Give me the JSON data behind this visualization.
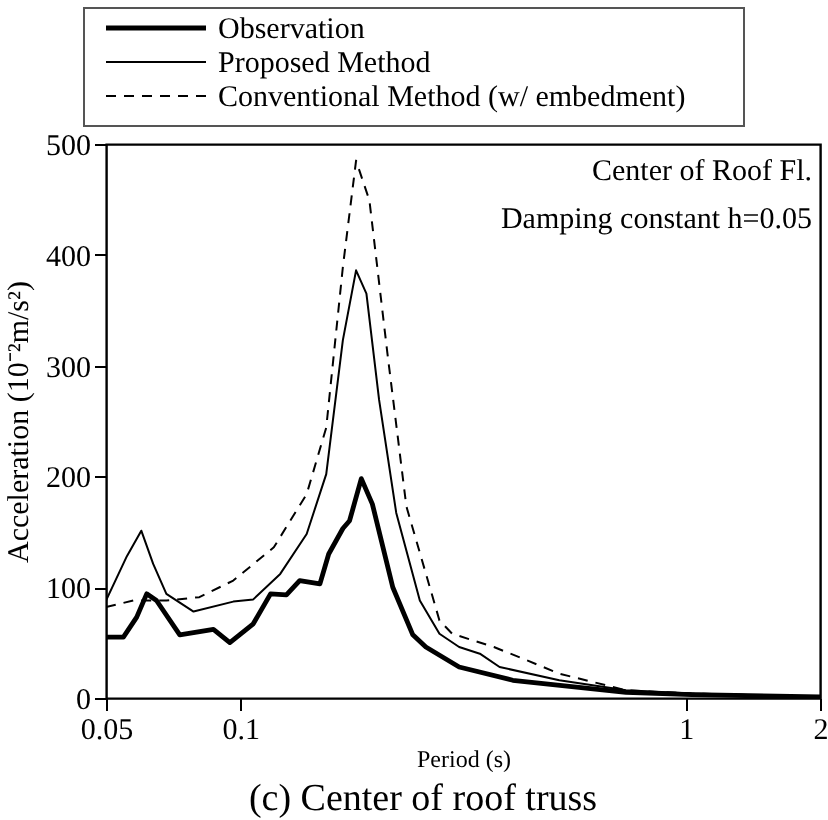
{
  "chart_data": {
    "type": "line",
    "xlabel": "Period (s)",
    "ylabel": "Acceleration (10⁻²m/s²)",
    "annotations": [
      "Center of Roof Fl.",
      "Damping constant h=0.05",
      "(c) Center of roof truss"
    ],
    "log": "x",
    "xlim": [
      0.05,
      2
    ],
    "xticks": [
      0.05,
      0.1,
      1,
      2
    ],
    "ylim": [
      0,
      500
    ],
    "yticks": [
      0,
      100,
      200,
      300,
      400,
      500
    ],
    "grid": false,
    "legend": "top",
    "marker": "none",
    "series": [
      {
        "name": "Observation",
        "color": "#000000",
        "line_style": "solid",
        "x": [
          0.05,
          0.0547,
          0.0586,
          0.0617,
          0.0649,
          0.0732,
          0.0871,
          0.0948,
          0.107,
          0.117,
          0.127,
          0.136,
          0.151,
          0.158,
          0.17,
          0.176,
          0.187,
          0.198,
          0.22,
          0.244,
          0.261,
          0.31,
          0.409,
          0.734,
          1.03,
          2
        ],
        "values": [
          55,
          55,
          73,
          94,
          88,
          57,
          62,
          50,
          67,
          94,
          93,
          106,
          103,
          130,
          153,
          160,
          198,
          175,
          100,
          57,
          46,
          28,
          16,
          5,
          3,
          1
        ]
      },
      {
        "name": "Proposed Method",
        "color": "#000000",
        "line_style": "solid",
        "x": [
          0.05,
          0.0557,
          0.06,
          0.0638,
          0.0683,
          0.0786,
          0.0965,
          0.107,
          0.123,
          0.141,
          0.156,
          0.17,
          0.182,
          0.192,
          0.205,
          0.224,
          0.253,
          0.28,
          0.31,
          0.345,
          0.382,
          0.52,
          0.734,
          1.03,
          2
        ],
        "values": [
          88,
          128,
          151,
          121,
          94,
          78,
          87,
          89,
          112,
          148,
          202,
          323,
          386,
          365,
          269,
          167,
          88,
          58,
          46,
          40,
          28,
          16,
          7,
          4,
          1
        ]
      },
      {
        "name": "Conventional Method (w/ embedment)",
        "color": "#000000",
        "line_style": "dashed",
        "x": [
          0.05,
          0.0576,
          0.0683,
          0.081,
          0.0965,
          0.119,
          0.141,
          0.156,
          0.17,
          0.182,
          0.195,
          0.214,
          0.236,
          0.28,
          0.299,
          0.371,
          0.44,
          0.52,
          0.734,
          1.03,
          2
        ],
        "values": [
          82,
          88,
          88,
          91,
          106,
          136,
          184,
          244,
          389,
          485,
          449,
          311,
          173,
          70,
          58,
          46,
          34,
          22,
          7,
          4,
          1
        ]
      }
    ]
  }
}
